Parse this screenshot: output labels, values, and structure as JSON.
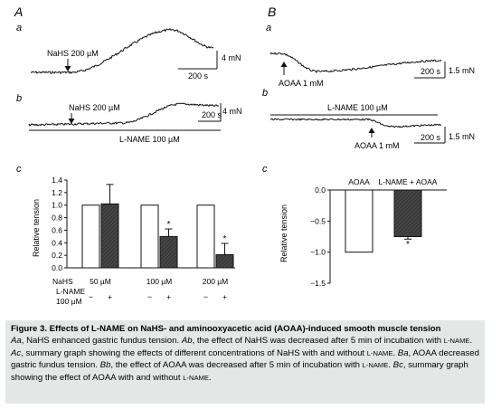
{
  "panels": {
    "A": "A",
    "B": "B",
    "Aa": "a",
    "Ab": "b",
    "Ac": "c",
    "Ba": "a",
    "Bb": "b",
    "Bc": "c"
  },
  "traces": {
    "Aa_marker": "NaHS 200 µM",
    "Aa_scale_y": "4 mN",
    "Aa_scale_x": "200 s",
    "Ab_marker": "NaHS 200 µM",
    "Ab_scale_y": "4 mN",
    "Ab_scale_x": "200 s",
    "Ab_bar_label": "L-NAME 100 µM",
    "Ba_marker": "AOAA 1 mM",
    "Ba_scale_y": "1.5 mN",
    "Ba_scale_x": "200 s",
    "Bb_marker": "AOAA 1 mM",
    "Bb_bar_label": "L-NAME 100 µM",
    "Bb_scale_y": "1.5 mN",
    "Bb_scale_x": "200 s"
  },
  "chart_data": [
    {
      "type": "bar",
      "panel": "Ac",
      "ylabel": "Relative tension",
      "ylim": [
        0,
        1.4
      ],
      "yticks": [
        "0.0",
        "0.2",
        "0.4",
        "0.6",
        "0.8",
        "1.0",
        "1.2",
        "1.4"
      ],
      "row_labels": {
        "nahs": "NaHS",
        "lname_1": "L-NAME",
        "lname_2": "100 µM"
      },
      "groups": [
        "50 µM",
        "100 µM",
        "200 µM"
      ],
      "lname_signs": [
        "−",
        "+"
      ],
      "series": [
        {
          "values": [
            1.0,
            1.0,
            1.0
          ],
          "errors": [
            0,
            0,
            0
          ],
          "fill": "#ffffff"
        },
        {
          "values": [
            1.02,
            0.5,
            0.21
          ],
          "errors": [
            0.31,
            0.12,
            0.18
          ],
          "fill": "#3a3a3a",
          "stars": [
            "",
            "*",
            "*"
          ]
        }
      ]
    },
    {
      "type": "bar",
      "panel": "Bc",
      "ylabel": "Relative tension",
      "ylim": [
        -1.5,
        0
      ],
      "yticks": [
        "0.0",
        "−0.5",
        "−1.0",
        "−1.5"
      ],
      "categories": [
        "AOAA",
        "L-NAME + AOAA"
      ],
      "values": [
        -1.0,
        -0.75
      ],
      "errors": [
        0,
        0.04
      ],
      "fills": [
        "#ffffff",
        "#3a3a3a"
      ],
      "stars": [
        "",
        "*"
      ]
    }
  ],
  "caption": {
    "title": "Figure 3.  Effects of L-NAME on NaHS- and aminooxyacetic acid (AOAA)-induced smooth muscle tension",
    "p1_label": "Aa",
    "p1_text": ", NaHS enhanced gastric fundus tension. ",
    "p2_label": "Ab",
    "p2_text": ", the effect of NaHS was decreased after 5 min of incubation with ",
    "p2_lname": "L-NAME",
    "p3_label": "Ac",
    "p3_text": ", summary graph showing the effects of different concentrations of NaHS with and without ",
    "p3_lname": "L-NAME",
    "p4_label": "Ba",
    "p4_text": ", AOAA decreased gastric fundus tension. ",
    "p5_label": "Bb",
    "p5_text": ", the effect of AOAA was decreased after 5 min of incubation with ",
    "p5_lname": "L-NAME",
    "p6_label": "Bc",
    "p6_text": ", summary graph showing the effect of AOAA with and without ",
    "p6_lname": "L-NAME"
  }
}
